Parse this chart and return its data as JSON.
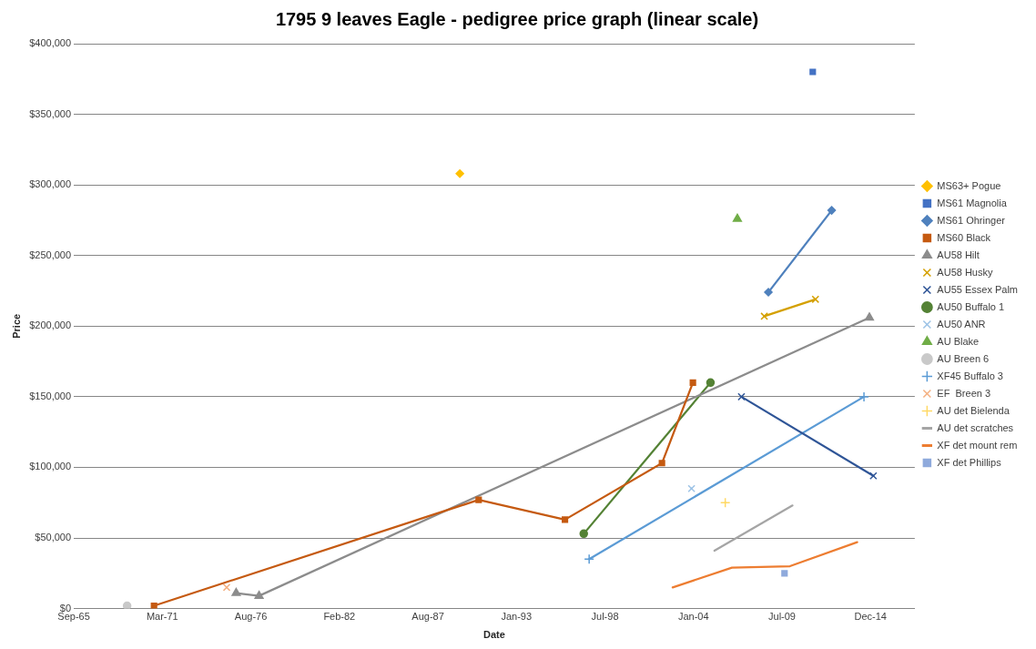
{
  "chart_data": {
    "type": "line",
    "title": "1795 9 leaves Eagle - pedigree price graph (linear scale)",
    "xlabel": "Date",
    "ylabel": "Price",
    "xlim": [
      "1965-09-15",
      "2017-09-22"
    ],
    "xticks": [
      {
        "value": "1965-09-15",
        "label": "Sep-65"
      },
      {
        "value": "1971-03-08",
        "label": "Mar-71"
      },
      {
        "value": "1976-08-28",
        "label": "Aug-76"
      },
      {
        "value": "1982-02-18",
        "label": "Feb-82"
      },
      {
        "value": "1987-08-11",
        "label": "Aug-87"
      },
      {
        "value": "1993-01-31",
        "label": "Jan-93"
      },
      {
        "value": "1998-07-24",
        "label": "Jul-98"
      },
      {
        "value": "2004-01-14",
        "label": "Jan-04"
      },
      {
        "value": "2009-07-06",
        "label": "Jul-09"
      },
      {
        "value": "2014-12-27",
        "label": "Dec-14"
      }
    ],
    "ylim": [
      0,
      400000
    ],
    "yticks": [
      {
        "value": 0,
        "label": "$0"
      },
      {
        "value": 50000,
        "label": "$50,000"
      },
      {
        "value": 100000,
        "label": "$100,000"
      },
      {
        "value": 150000,
        "label": "$150,000"
      },
      {
        "value": 200000,
        "label": "$200,000"
      },
      {
        "value": 250000,
        "label": "$250,000"
      },
      {
        "value": 300000,
        "label": "$300,000"
      },
      {
        "value": 350000,
        "label": "$350,000"
      },
      {
        "value": 400000,
        "label": "$400,000"
      }
    ],
    "grid": "y",
    "legend": "right",
    "series": [
      {
        "name": "MS63+ Pogue",
        "color": "#ffc000",
        "marker": "diamond",
        "x": [
          "1989-08"
        ],
        "values": [
          308000
        ]
      },
      {
        "name": "MS61 Magnolia",
        "color": "#4472c4",
        "marker": "square",
        "x": [
          "2011-06"
        ],
        "values": [
          380000
        ]
      },
      {
        "name": "MS61 Ohringer",
        "color": "#4f81bd",
        "marker": "diamond",
        "x": [
          "2008-09",
          "2012-08"
        ],
        "values": [
          224000,
          282000
        ]
      },
      {
        "name": "MS60 Black",
        "color": "#c55a11",
        "marker": "square",
        "x": [
          "1970-09",
          "1990-10",
          "1996-02",
          "2002-02",
          "2004-01"
        ],
        "values": [
          2000,
          77000,
          63000,
          103000,
          160000
        ]
      },
      {
        "name": "AU58 Hilt",
        "color": "#8c8c8c",
        "marker": "triangle",
        "x": [
          "1975-10",
          "1977-03",
          "2014-12"
        ],
        "values": [
          11000,
          9000,
          206000
        ]
      },
      {
        "name": "AU58 Husky",
        "color": "#d4a000",
        "marker": "cross",
        "x": [
          "2008-06",
          "2011-08"
        ],
        "values": [
          207000,
          219000
        ]
      },
      {
        "name": "AU55 Essex Palm",
        "color": "#2f5597",
        "marker": "cross",
        "x": [
          "2007-01",
          "2015-03"
        ],
        "values": [
          150000,
          94000
        ]
      },
      {
        "name": "AU50 Buffalo 1",
        "color": "#548235",
        "marker": "circle",
        "x": [
          "1997-04",
          "2005-02"
        ],
        "values": [
          53000,
          160000
        ]
      },
      {
        "name": "AU50 ANR",
        "color": "#9dc3e6",
        "marker": "cross",
        "x": [
          "2003-12"
        ],
        "values": [
          85000
        ]
      },
      {
        "name": "AU Blake",
        "color": "#70ad47",
        "marker": "triangle",
        "x": [
          "2006-10"
        ],
        "values": [
          276000
        ]
      },
      {
        "name": "AU Breen 6",
        "color": "#c9c9c9",
        "marker": "circle",
        "x": [
          "1969-01"
        ],
        "values": [
          2000
        ]
      },
      {
        "name": "XF45 Buffalo 3",
        "color": "#5b9bd5",
        "marker": "plus",
        "x": [
          "1997-08",
          "2014-08"
        ],
        "values": [
          35000,
          150000
        ]
      },
      {
        "name": "EF  Breen 3",
        "color": "#f4b183",
        "marker": "cross",
        "x": [
          "1975-03"
        ],
        "values": [
          15000
        ]
      },
      {
        "name": "AU det Bielenda",
        "color": "#ffd966",
        "marker": "plus",
        "x": [
          "2006-01"
        ],
        "values": [
          75000
        ]
      },
      {
        "name": "AU det scratches",
        "color": "#a5a5a5",
        "marker": "none",
        "x": [
          "2005-05",
          "2010-03"
        ],
        "values": [
          41000,
          73000
        ]
      },
      {
        "name": "XF det mount rem",
        "color": "#ed7d31",
        "marker": "none",
        "x": [
          "2002-10",
          "2006-06",
          "2010-01",
          "2014-03"
        ],
        "values": [
          15000,
          29000,
          30000,
          47000
        ]
      },
      {
        "name": "XF det Phillips",
        "color": "#8faadc",
        "marker": "square",
        "x": [
          "2009-09"
        ],
        "values": [
          25000
        ]
      }
    ]
  }
}
